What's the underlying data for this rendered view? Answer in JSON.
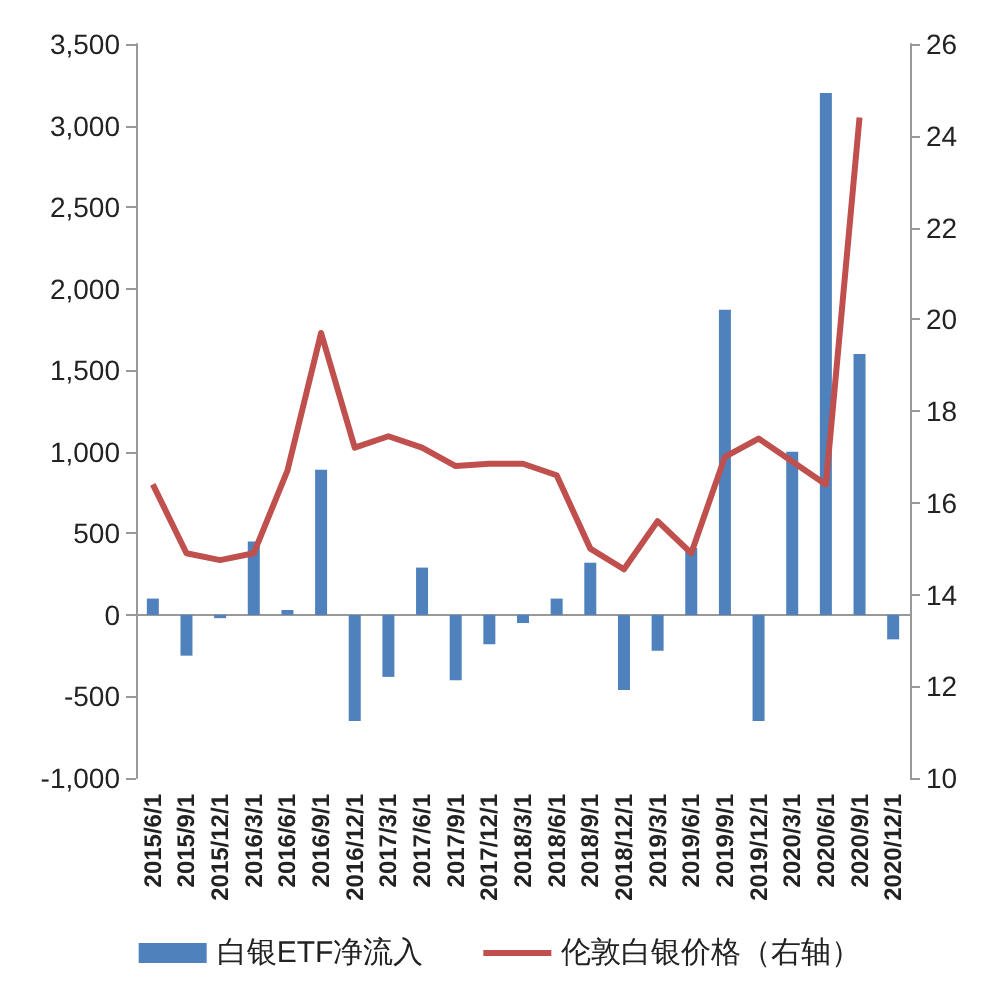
{
  "chart_data": {
    "type": "bar",
    "categories": [
      "2015/6/1",
      "2015/9/1",
      "2015/12/1",
      "2016/3/1",
      "2016/6/1",
      "2016/9/1",
      "2016/12/1",
      "2017/3/1",
      "2017/6/1",
      "2017/9/1",
      "2017/12/1",
      "2018/3/1",
      "2018/6/1",
      "2018/9/1",
      "2018/12/1",
      "2019/3/1",
      "2019/6/1",
      "2019/9/1",
      "2019/12/1",
      "2020/3/1",
      "2020/6/1",
      "2020/9/1",
      "2020/12/1"
    ],
    "series": [
      {
        "name": "白银ETF净流入",
        "color": "#4f81bd",
        "values": [
          100,
          -250,
          -20,
          450,
          30,
          890,
          -650,
          -380,
          290,
          -400,
          -180,
          -50,
          100,
          320,
          -460,
          -220,
          410,
          1870,
          -650,
          1000,
          3200,
          1600,
          -150
        ]
      },
      {
        "name": "伦敦白银价格（右轴）",
        "type": "line",
        "axis": "y2",
        "color": "#c0504d",
        "values": [
          16.4,
          14.9,
          14.75,
          14.9,
          16.7,
          19.7,
          17.2,
          17.45,
          17.2,
          16.8,
          16.85,
          16.85,
          16.6,
          15.0,
          14.55,
          15.6,
          14.9,
          17.0,
          17.4,
          16.9,
          16.4,
          24.4,
          null
        ]
      }
    ],
    "ylim": [
      -1000,
      3500
    ],
    "yticks": [
      {
        "value": -1000,
        "label": "-1,000"
      },
      -500,
      0,
      500,
      {
        "value": 1000,
        "label": "1,000"
      },
      {
        "value": 1500,
        "label": "1,500"
      },
      {
        "value": 2000,
        "label": "2,000"
      },
      {
        "value": 2500,
        "label": "2,500"
      },
      {
        "value": 3000,
        "label": "3,000"
      },
      {
        "value": 3500,
        "label": "3,500"
      }
    ],
    "y2lim": [
      10,
      26
    ],
    "y2ticks": [
      10,
      12,
      14,
      16,
      18,
      20,
      22,
      24,
      26
    ],
    "legend": "bottom",
    "marker": "none"
  }
}
